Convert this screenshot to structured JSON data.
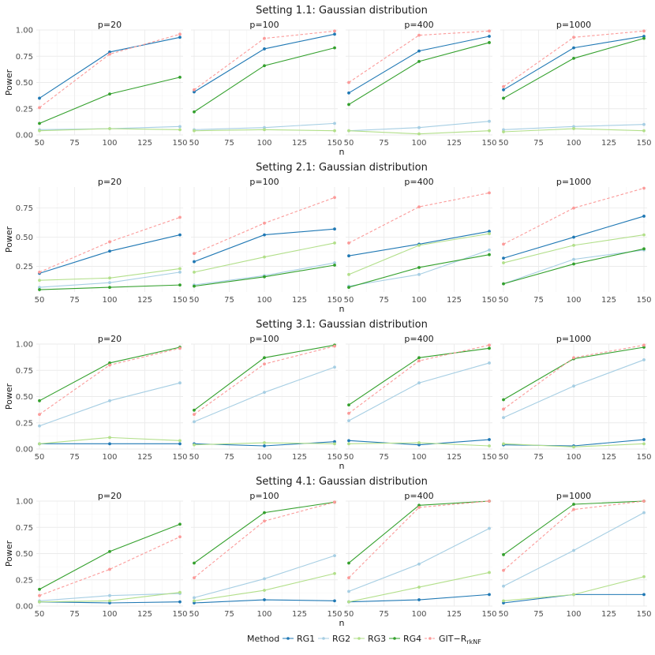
{
  "legend": {
    "title": "Method",
    "entries": [
      {
        "key": "RG1",
        "label": "RG1",
        "sub": ""
      },
      {
        "key": "RG2",
        "label": "RG2",
        "sub": ""
      },
      {
        "key": "RG3",
        "label": "RG3",
        "sub": ""
      },
      {
        "key": "RG4",
        "label": "RG4",
        "sub": ""
      },
      {
        "key": "GIT",
        "label": "GIT−R",
        "sub": "rkNF"
      }
    ]
  },
  "colors": {
    "RG1": "#1f78b4",
    "RG2": "#a6cee3",
    "RG3": "#b2df8a",
    "RG4": "#33a02c",
    "GIT": "#fb9a99"
  },
  "chart_data": [
    {
      "type": "line",
      "title": "Setting 1.1: Gaussian distribution",
      "xlabel": "n",
      "ylabel": "Power",
      "x": [
        50,
        100,
        150
      ],
      "xlim": [
        50,
        150
      ],
      "xticks": [
        "50",
        "75",
        "100",
        "125",
        "150"
      ],
      "ylim": [
        0,
        1.0
      ],
      "yticks": [
        "0.00",
        "0.25",
        "0.50",
        "0.75",
        "1.00"
      ],
      "ytick_values": [
        0,
        0.25,
        0.5,
        0.75,
        1.0
      ],
      "panels": [
        {
          "label": "p=20",
          "series": [
            {
              "name": "RG1",
              "values": [
                0.35,
                0.79,
                0.93
              ]
            },
            {
              "name": "RG2",
              "values": [
                0.05,
                0.06,
                0.08
              ]
            },
            {
              "name": "RG3",
              "values": [
                0.04,
                0.06,
                0.05
              ]
            },
            {
              "name": "RG4",
              "values": [
                0.11,
                0.39,
                0.55
              ]
            },
            {
              "name": "GIT",
              "values": [
                0.26,
                0.77,
                0.96
              ]
            }
          ]
        },
        {
          "label": "p=100",
          "series": [
            {
              "name": "RG1",
              "values": [
                0.41,
                0.82,
                0.96
              ]
            },
            {
              "name": "RG2",
              "values": [
                0.05,
                0.07,
                0.11
              ]
            },
            {
              "name": "RG3",
              "values": [
                0.04,
                0.05,
                0.04
              ]
            },
            {
              "name": "RG4",
              "values": [
                0.22,
                0.66,
                0.83
              ]
            },
            {
              "name": "GIT",
              "values": [
                0.43,
                0.92,
                0.99
              ]
            }
          ]
        },
        {
          "label": "p=400",
          "series": [
            {
              "name": "RG1",
              "values": [
                0.4,
                0.8,
                0.94
              ]
            },
            {
              "name": "RG2",
              "values": [
                0.04,
                0.07,
                0.13
              ]
            },
            {
              "name": "RG3",
              "values": [
                0.04,
                0.01,
                0.04
              ]
            },
            {
              "name": "RG4",
              "values": [
                0.29,
                0.7,
                0.88
              ]
            },
            {
              "name": "GIT",
              "values": [
                0.5,
                0.95,
                0.99
              ]
            }
          ]
        },
        {
          "label": "p=1000",
          "series": [
            {
              "name": "RG1",
              "values": [
                0.43,
                0.83,
                0.94
              ]
            },
            {
              "name": "RG2",
              "values": [
                0.05,
                0.08,
                0.1
              ]
            },
            {
              "name": "RG3",
              "values": [
                0.03,
                0.06,
                0.04
              ]
            },
            {
              "name": "RG4",
              "values": [
                0.35,
                0.73,
                0.92
              ]
            },
            {
              "name": "GIT",
              "values": [
                0.46,
                0.93,
                0.99
              ]
            }
          ]
        }
      ]
    },
    {
      "type": "line",
      "title": "Setting 2.1: Gaussian distribution",
      "xlabel": "n",
      "ylabel": "Power",
      "x": [
        50,
        100,
        150
      ],
      "xlim": [
        50,
        150
      ],
      "xticks": [
        "50",
        "75",
        "100",
        "125",
        "150"
      ],
      "ylim": [
        0.03,
        0.93
      ],
      "yticks": [
        "0.25",
        "0.50",
        "0.75"
      ],
      "ytick_values": [
        0.25,
        0.5,
        0.75
      ],
      "panels": [
        {
          "label": "p=20",
          "series": [
            {
              "name": "RG1",
              "values": [
                0.19,
                0.38,
                0.52
              ]
            },
            {
              "name": "RG2",
              "values": [
                0.07,
                0.11,
                0.2
              ]
            },
            {
              "name": "RG3",
              "values": [
                0.13,
                0.15,
                0.23
              ]
            },
            {
              "name": "RG4",
              "values": [
                0.05,
                0.07,
                0.09
              ]
            },
            {
              "name": "GIT",
              "values": [
                0.2,
                0.46,
                0.67
              ]
            }
          ]
        },
        {
          "label": "p=100",
          "series": [
            {
              "name": "RG1",
              "values": [
                0.29,
                0.52,
                0.57
              ]
            },
            {
              "name": "RG2",
              "values": [
                0.09,
                0.17,
                0.28
              ]
            },
            {
              "name": "RG3",
              "values": [
                0.2,
                0.33,
                0.45
              ]
            },
            {
              "name": "RG4",
              "values": [
                0.08,
                0.16,
                0.26
              ]
            },
            {
              "name": "GIT",
              "values": [
                0.36,
                0.62,
                0.84
              ]
            }
          ]
        },
        {
          "label": "p=400",
          "series": [
            {
              "name": "RG1",
              "values": [
                0.34,
                0.44,
                0.55
              ]
            },
            {
              "name": "RG2",
              "values": [
                0.08,
                0.18,
                0.39
              ]
            },
            {
              "name": "RG3",
              "values": [
                0.18,
                0.43,
                0.53
              ]
            },
            {
              "name": "RG4",
              "values": [
                0.07,
                0.24,
                0.35
              ]
            },
            {
              "name": "GIT",
              "values": [
                0.45,
                0.76,
                0.88
              ]
            }
          ]
        },
        {
          "label": "p=1000",
          "series": [
            {
              "name": "RG1",
              "values": [
                0.32,
                0.5,
                0.68
              ]
            },
            {
              "name": "RG2",
              "values": [
                0.1,
                0.31,
                0.39
              ]
            },
            {
              "name": "RG3",
              "values": [
                0.28,
                0.43,
                0.52
              ]
            },
            {
              "name": "RG4",
              "values": [
                0.1,
                0.27,
                0.4
              ]
            },
            {
              "name": "GIT",
              "values": [
                0.44,
                0.75,
                0.92
              ]
            }
          ]
        }
      ]
    },
    {
      "type": "line",
      "title": "Setting 3.1: Gaussian distribution",
      "xlabel": "n",
      "ylabel": "Power",
      "x": [
        50,
        100,
        150
      ],
      "xlim": [
        50,
        150
      ],
      "xticks": [
        "50",
        "75",
        "100",
        "125",
        "150"
      ],
      "ylim": [
        0,
        1.0
      ],
      "yticks": [
        "0.00",
        "0.25",
        "0.50",
        "0.75",
        "1.00"
      ],
      "ytick_values": [
        0,
        0.25,
        0.5,
        0.75,
        1.0
      ],
      "panels": [
        {
          "label": "p=20",
          "series": [
            {
              "name": "RG1",
              "values": [
                0.05,
                0.05,
                0.05
              ]
            },
            {
              "name": "RG2",
              "values": [
                0.22,
                0.46,
                0.63
              ]
            },
            {
              "name": "RG3",
              "values": [
                0.05,
                0.11,
                0.08
              ]
            },
            {
              "name": "RG4",
              "values": [
                0.46,
                0.82,
                0.97
              ]
            },
            {
              "name": "GIT",
              "values": [
                0.33,
                0.8,
                0.96
              ]
            }
          ]
        },
        {
          "label": "p=100",
          "series": [
            {
              "name": "RG1",
              "values": [
                0.05,
                0.03,
                0.07
              ]
            },
            {
              "name": "RG2",
              "values": [
                0.26,
                0.54,
                0.78
              ]
            },
            {
              "name": "RG3",
              "values": [
                0.04,
                0.06,
                0.05
              ]
            },
            {
              "name": "RG4",
              "values": [
                0.37,
                0.87,
                0.99
              ]
            },
            {
              "name": "GIT",
              "values": [
                0.33,
                0.81,
                0.98
              ]
            }
          ]
        },
        {
          "label": "p=400",
          "series": [
            {
              "name": "RG1",
              "values": [
                0.08,
                0.04,
                0.09
              ]
            },
            {
              "name": "RG2",
              "values": [
                0.27,
                0.63,
                0.82
              ]
            },
            {
              "name": "RG3",
              "values": [
                0.05,
                0.06,
                0.03
              ]
            },
            {
              "name": "RG4",
              "values": [
                0.42,
                0.87,
                0.96
              ]
            },
            {
              "name": "GIT",
              "values": [
                0.34,
                0.84,
                0.99
              ]
            }
          ]
        },
        {
          "label": "p=1000",
          "series": [
            {
              "name": "RG1",
              "values": [
                0.04,
                0.03,
                0.09
              ]
            },
            {
              "name": "RG2",
              "values": [
                0.3,
                0.6,
                0.85
              ]
            },
            {
              "name": "RG3",
              "values": [
                0.05,
                0.02,
                0.05
              ]
            },
            {
              "name": "RG4",
              "values": [
                0.47,
                0.86,
                0.97
              ]
            },
            {
              "name": "GIT",
              "values": [
                0.38,
                0.87,
                0.99
              ]
            }
          ]
        }
      ]
    },
    {
      "type": "line",
      "title": "Setting 4.1: Gaussian distribution",
      "xlabel": "n",
      "ylabel": "Power",
      "x": [
        50,
        100,
        150
      ],
      "xlim": [
        50,
        150
      ],
      "xticks": [
        "50",
        "75",
        "100",
        "125",
        "150"
      ],
      "ylim": [
        0,
        1.0
      ],
      "yticks": [
        "0.00",
        "0.25",
        "0.50",
        "0.75",
        "1.00"
      ],
      "ytick_values": [
        0,
        0.25,
        0.5,
        0.75,
        1.0
      ],
      "panels": [
        {
          "label": "p=20",
          "series": [
            {
              "name": "RG1",
              "values": [
                0.04,
                0.03,
                0.04
              ]
            },
            {
              "name": "RG2",
              "values": [
                0.05,
                0.1,
                0.12
              ]
            },
            {
              "name": "RG3",
              "values": [
                0.04,
                0.05,
                0.13
              ]
            },
            {
              "name": "RG4",
              "values": [
                0.16,
                0.52,
                0.78
              ]
            },
            {
              "name": "GIT",
              "values": [
                0.1,
                0.35,
                0.66
              ]
            }
          ]
        },
        {
          "label": "p=100",
          "series": [
            {
              "name": "RG1",
              "values": [
                0.03,
                0.06,
                0.05
              ]
            },
            {
              "name": "RG2",
              "values": [
                0.08,
                0.26,
                0.48
              ]
            },
            {
              "name": "RG3",
              "values": [
                0.05,
                0.15,
                0.31
              ]
            },
            {
              "name": "RG4",
              "values": [
                0.41,
                0.89,
                0.99
              ]
            },
            {
              "name": "GIT",
              "values": [
                0.27,
                0.81,
                0.99
              ]
            }
          ]
        },
        {
          "label": "p=400",
          "series": [
            {
              "name": "RG1",
              "values": [
                0.04,
                0.06,
                0.11
              ]
            },
            {
              "name": "RG2",
              "values": [
                0.14,
                0.4,
                0.74
              ]
            },
            {
              "name": "RG3",
              "values": [
                0.04,
                0.18,
                0.32
              ]
            },
            {
              "name": "RG4",
              "values": [
                0.41,
                0.96,
                1.0
              ]
            },
            {
              "name": "GIT",
              "values": [
                0.27,
                0.94,
                1.0
              ]
            }
          ]
        },
        {
          "label": "p=1000",
          "series": [
            {
              "name": "RG1",
              "values": [
                0.03,
                0.11,
                0.11
              ]
            },
            {
              "name": "RG2",
              "values": [
                0.19,
                0.53,
                0.89
              ]
            },
            {
              "name": "RG3",
              "values": [
                0.05,
                0.11,
                0.28
              ]
            },
            {
              "name": "RG4",
              "values": [
                0.49,
                0.97,
                1.0
              ]
            },
            {
              "name": "GIT",
              "values": [
                0.34,
                0.92,
                1.0
              ]
            }
          ]
        }
      ]
    }
  ]
}
